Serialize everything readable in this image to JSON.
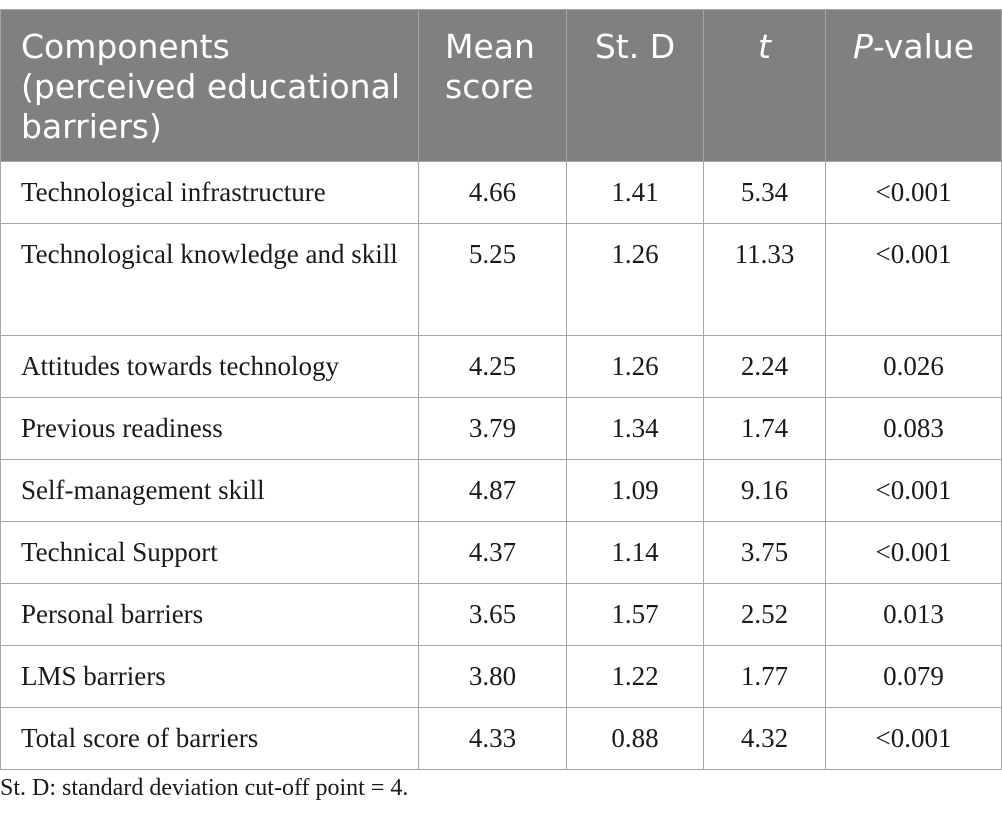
{
  "table": {
    "headers": {
      "components": "Components (perceived educational barriers)",
      "mean": "Mean score",
      "sd": "St. D",
      "t": "t",
      "p_italic": "P",
      "p_rest": "-value"
    },
    "rows": [
      {
        "component": "Technological infrastructure",
        "mean": "4.66",
        "sd": "1.41",
        "t": "5.34",
        "p": "<0.001"
      },
      {
        "component": "Technological knowledge and skill",
        "mean": "5.25",
        "sd": "1.26",
        "t": "11.33",
        "p": "<0.001"
      },
      {
        "component": "Attitudes towards technology",
        "mean": "4.25",
        "sd": "1.26",
        "t": "2.24",
        "p": "0.026"
      },
      {
        "component": "Previous readiness",
        "mean": "3.79",
        "sd": "1.34",
        "t": "1.74",
        "p": "0.083"
      },
      {
        "component": "Self-management skill",
        "mean": "4.87",
        "sd": "1.09",
        "t": "9.16",
        "p": "<0.001"
      },
      {
        "component": "Technical Support",
        "mean": "4.37",
        "sd": "1.14",
        "t": "3.75",
        "p": "<0.001"
      },
      {
        "component": "Personal barriers",
        "mean": "3.65",
        "sd": "1.57",
        "t": "2.52",
        "p": "0.013"
      },
      {
        "component": "LMS barriers",
        "mean": "3.80",
        "sd": "1.22",
        "t": "1.77",
        "p": "0.079"
      },
      {
        "component": "Total score of barriers",
        "mean": "4.33",
        "sd": "0.88",
        "t": "4.32",
        "p": "<0.001"
      }
    ]
  },
  "footnote": "St. D: standard deviation cut-off point = 4.",
  "colors": {
    "header_bg": "#808080",
    "header_text": "#ffffff",
    "border": "#a6a6a6"
  }
}
